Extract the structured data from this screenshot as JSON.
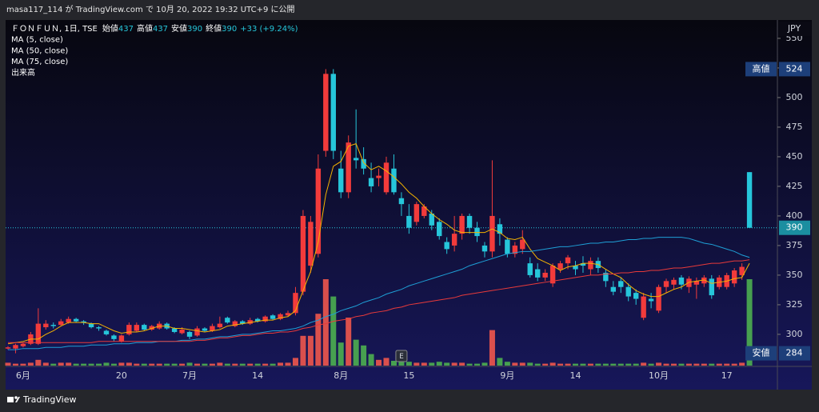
{
  "header": {
    "text": "masa117_114 が TradingView.com で 10月 20, 2022 19:32 UTC+9 に公開"
  },
  "footer": {
    "logo": "TradingView"
  },
  "chart_data": {
    "type": "candlestick",
    "symbol": "ＦＯＮＦＵＮ, 1日, TSE",
    "stats": [
      {
        "label": "始値",
        "value": 437
      },
      {
        "label": "高値",
        "value": 437
      },
      {
        "label": "安値",
        "value": 390
      },
      {
        "label": "終値",
        "value": 390
      }
    ],
    "change": "+33 (+9.24%)",
    "categories": [
      null,
      null,
      "6月",
      null,
      null,
      null,
      null,
      null,
      null,
      null,
      null,
      null,
      null,
      null,
      null,
      "20",
      null,
      null,
      null,
      null,
      null,
      null,
      null,
      null,
      "7月",
      null,
      null,
      null,
      null,
      null,
      null,
      null,
      null,
      "14",
      null,
      null,
      null,
      null,
      null,
      null,
      null,
      null,
      null,
      null,
      "8月",
      null,
      null,
      null,
      null,
      null,
      null,
      null,
      null,
      "15",
      null,
      null,
      null,
      null,
      null,
      null,
      null,
      null,
      null,
      null,
      null,
      null,
      "9月",
      null,
      null,
      null,
      null,
      null,
      null,
      null,
      null,
      "14",
      null,
      null,
      null,
      null,
      null,
      null,
      null,
      null,
      null,
      null,
      "10月",
      null,
      null,
      null,
      null,
      null,
      null,
      null,
      null,
      "17",
      null,
      null,
      null
    ],
    "open": [
      288,
      288,
      290,
      292,
      292,
      306,
      308,
      308,
      310,
      313,
      311,
      309,
      306,
      303,
      299,
      294,
      300,
      303,
      308,
      304,
      305,
      309,
      305,
      301,
      302,
      299,
      305,
      303,
      306,
      314,
      307,
      311,
      309,
      313,
      311,
      316,
      313,
      316,
      318,
      336,
      358,
      368,
      455,
      520,
      440,
      420,
      449,
      448,
      432,
      432,
      420,
      440,
      415,
      400,
      395,
      400,
      402,
      395,
      378,
      375,
      385,
      400,
      390,
      375,
      370,
      393,
      380,
      368,
      372,
      360,
      355,
      348,
      343,
      355,
      360,
      358,
      360,
      355,
      362,
      352,
      340,
      345,
      340,
      335,
      314,
      330,
      320,
      340,
      342,
      348,
      340,
      342,
      343,
      347,
      340,
      340,
      343,
      350,
      437
    ],
    "high": [
      290,
      292,
      293,
      302,
      322,
      312,
      310,
      313,
      315,
      314,
      312,
      310,
      307,
      304,
      300,
      300,
      310,
      310,
      309,
      308,
      311,
      310,
      306,
      306,
      303,
      307,
      306,
      309,
      315,
      315,
      312,
      312,
      314,
      314,
      316,
      317,
      318,
      320,
      340,
      405,
      400,
      452,
      524,
      524,
      455,
      468,
      490,
      458,
      445,
      440,
      450,
      452,
      420,
      410,
      412,
      410,
      405,
      398,
      382,
      400,
      402,
      402,
      395,
      378,
      447,
      398,
      382,
      378,
      388,
      365,
      360,
      355,
      360,
      362,
      367,
      362,
      366,
      365,
      365,
      355,
      345,
      348,
      343,
      338,
      335,
      335,
      342,
      347,
      348,
      350,
      349,
      348,
      350,
      350,
      350,
      352,
      356,
      360,
      437
    ],
    "low": [
      287,
      284,
      289,
      291,
      291,
      304,
      305,
      307,
      309,
      310,
      308,
      305,
      303,
      299,
      294,
      293,
      299,
      302,
      303,
      303,
      304,
      304,
      301,
      300,
      296,
      298,
      302,
      302,
      305,
      309,
      306,
      308,
      308,
      310,
      310,
      312,
      312,
      315,
      316,
      333,
      352,
      365,
      450,
      448,
      415,
      415,
      440,
      435,
      420,
      425,
      418,
      418,
      400,
      385,
      392,
      398,
      388,
      380,
      368,
      370,
      380,
      385,
      378,
      365,
      365,
      375,
      365,
      365,
      368,
      348,
      345,
      345,
      340,
      352,
      355,
      350,
      352,
      350,
      352,
      340,
      333,
      335,
      328,
      325,
      312,
      322,
      318,
      335,
      338,
      338,
      335,
      330,
      340,
      330,
      338,
      338,
      340,
      346,
      390
    ],
    "close": [
      289,
      291,
      292,
      300,
      309,
      309,
      307,
      311,
      313,
      311,
      310,
      306,
      305,
      300,
      296,
      299,
      308,
      308,
      304,
      307,
      309,
      305,
      302,
      304,
      298,
      305,
      303,
      307,
      309,
      310,
      311,
      309,
      312,
      311,
      315,
      313,
      317,
      318,
      335,
      400,
      395,
      440,
      520,
      455,
      420,
      462,
      447,
      440,
      425,
      434,
      445,
      420,
      410,
      390,
      410,
      408,
      392,
      383,
      372,
      385,
      400,
      390,
      383,
      370,
      400,
      385,
      368,
      375,
      380,
      350,
      348,
      352,
      358,
      360,
      365,
      355,
      358,
      362,
      356,
      345,
      336,
      340,
      332,
      330,
      332,
      328,
      340,
      345,
      346,
      342,
      347,
      345,
      348,
      333,
      348,
      350,
      354,
      357,
      390
    ],
    "up_color": "#f23b3b",
    "down_color": "#26c6da",
    "ma": [
      {
        "name": "MA (5, close)",
        "color": "#f5b300",
        "values": [
          292,
          293,
          294,
          296,
          296,
          300,
          303,
          307,
          310,
          310,
          310,
          309,
          309,
          306,
          303,
          301,
          302,
          302,
          303,
          305,
          307,
          307,
          305,
          305,
          304,
          303,
          302,
          303,
          304,
          307,
          308,
          309,
          310,
          311,
          312,
          312,
          314,
          315,
          320,
          337,
          353,
          378,
          418,
          442,
          446,
          459,
          461,
          445,
          439,
          442,
          438,
          433,
          427,
          420,
          415,
          408,
          402,
          397,
          393,
          388,
          386,
          386,
          386,
          386,
          389,
          386,
          381,
          380,
          382,
          372,
          364,
          361,
          358,
          354,
          357,
          358,
          360,
          360,
          359,
          355,
          351,
          348,
          342,
          337,
          334,
          332,
          332,
          335,
          338,
          340,
          344,
          345,
          346,
          343,
          344,
          345,
          347,
          348,
          360
        ]
      },
      {
        "name": "MA (50, close)",
        "color": "#1e9fd6",
        "values": [
          287,
          287,
          288,
          288,
          288,
          289,
          289,
          289,
          290,
          290,
          290,
          291,
          291,
          291,
          292,
          292,
          292,
          293,
          293,
          293,
          294,
          294,
          294,
          295,
          295,
          296,
          296,
          297,
          298,
          298,
          299,
          300,
          300,
          301,
          302,
          303,
          303,
          304,
          305,
          307,
          310,
          312,
          315,
          317,
          320,
          322,
          324,
          327,
          329,
          331,
          334,
          336,
          338,
          341,
          343,
          345,
          347,
          349,
          351,
          353,
          355,
          358,
          360,
          362,
          364,
          366,
          368,
          369,
          370,
          370,
          371,
          372,
          373,
          374,
          374,
          375,
          376,
          377,
          377,
          378,
          378,
          379,
          380,
          380,
          381,
          381,
          382,
          382,
          382,
          382,
          381,
          379,
          377,
          376,
          374,
          372,
          370,
          367,
          365
        ]
      },
      {
        "name": "MA (75, close)",
        "color": "#e83a3a",
        "values": [
          293,
          293,
          293,
          293,
          293,
          293,
          293,
          293,
          293,
          293,
          293,
          293,
          294,
          294,
          294,
          294,
          294,
          294,
          294,
          294,
          294,
          294,
          294,
          294,
          294,
          295,
          295,
          296,
          297,
          297,
          298,
          299,
          299,
          300,
          301,
          301,
          302,
          302,
          303,
          305,
          306,
          308,
          309,
          311,
          312,
          313,
          315,
          316,
          318,
          319,
          320,
          322,
          323,
          325,
          326,
          327,
          328,
          329,
          330,
          331,
          333,
          334,
          335,
          336,
          337,
          338,
          339,
          340,
          341,
          342,
          343,
          344,
          345,
          346,
          347,
          348,
          349,
          350,
          350,
          351,
          351,
          352,
          352,
          353,
          353,
          354,
          354,
          355,
          356,
          356,
          357,
          358,
          359,
          360,
          360,
          361,
          362,
          362,
          363
        ]
      }
    ],
    "volume": {
      "name": "出来高",
      "up_color": "#f0574c",
      "down_color": "#4caf50",
      "vlim": [
        0,
        100
      ],
      "values": [
        3,
        2,
        2,
        3,
        6,
        3,
        2,
        3,
        3,
        2,
        2,
        2,
        2,
        3,
        2,
        3,
        3,
        2,
        2,
        2,
        2,
        2,
        2,
        2,
        3,
        2,
        2,
        2,
        3,
        2,
        2,
        2,
        2,
        2,
        2,
        2,
        3,
        3,
        8,
        31,
        31,
        54,
        90,
        72,
        24,
        50,
        27,
        21,
        12,
        6,
        8,
        5,
        4,
        4,
        3,
        3,
        3,
        4,
        3,
        3,
        3,
        2,
        2,
        3,
        37,
        8,
        4,
        3,
        3,
        3,
        2,
        2,
        3,
        2,
        2,
        2,
        2,
        2,
        2,
        2,
        2,
        2,
        2,
        2,
        3,
        2,
        3,
        2,
        2,
        2,
        2,
        2,
        2,
        2,
        2,
        2,
        2,
        3,
        90
      ]
    },
    "ylim": [
      273.6,
      565.5
    ],
    "yticks": [
      300,
      325,
      350,
      375,
      400,
      425,
      450,
      475,
      500,
      525,
      550
    ],
    "y_unit": "JPY",
    "high_marker": {
      "label": "高値",
      "value": 524
    },
    "low_marker": {
      "label": "安値",
      "value": 284
    },
    "last_price": {
      "value": 390,
      "color": "#26c6da"
    },
    "event": {
      "label": "E",
      "at": 52
    },
    "grid": false
  }
}
